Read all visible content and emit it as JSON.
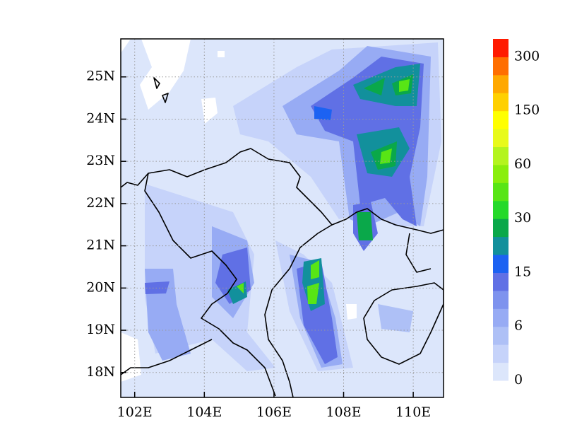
{
  "chart_data": {
    "type": "contour-map",
    "xlim": [
      101.6,
      110.87
    ],
    "ylim": [
      17.41,
      25.9
    ],
    "xticks": [
      {
        "value": 102,
        "label": "102E"
      },
      {
        "value": 104,
        "label": "104E"
      },
      {
        "value": 106,
        "label": "106E"
      },
      {
        "value": 108,
        "label": "108E"
      },
      {
        "value": 110,
        "label": "110E"
      }
    ],
    "yticks": [
      {
        "value": 18,
        "label": "18N"
      },
      {
        "value": 19,
        "label": "19N"
      },
      {
        "value": 20,
        "label": "20N"
      },
      {
        "value": 21,
        "label": "21N"
      },
      {
        "value": 22,
        "label": "22N"
      },
      {
        "value": 23,
        "label": "23N"
      },
      {
        "value": 24,
        "label": "24N"
      },
      {
        "value": 25,
        "label": "25N"
      }
    ],
    "grid": true,
    "colorbar": {
      "levels": [
        0,
        6,
        15,
        30,
        60,
        150,
        300
      ],
      "colors": [
        "#dce6fb",
        "#c6d3fa",
        "#aec0f6",
        "#97abf4",
        "#7e93ee",
        "#6070e5",
        "#1c62f2",
        "#12909c",
        "#0aa84a",
        "#25d92a",
        "#58e515",
        "#8aee0c",
        "#b4f41e",
        "#e8fa1a",
        "#ffff00",
        "#ffd000",
        "#ffa800",
        "#ff6e00",
        "#ff1a00"
      ]
    }
  }
}
